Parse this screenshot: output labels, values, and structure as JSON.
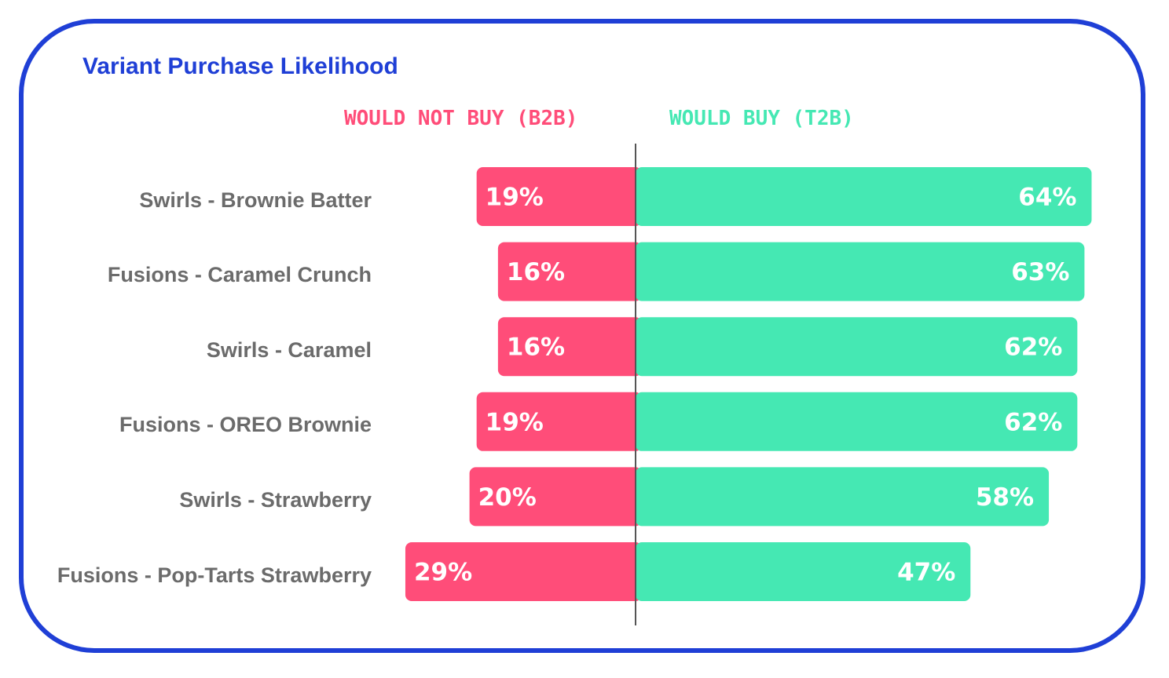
{
  "chart_data": {
    "type": "bar",
    "orientation": "horizontal-diverging",
    "title": "Variant Purchase Likelihood",
    "categories": [
      "Swirls - Brownie Batter",
      "Fusions - Caramel Crunch",
      "Swirls - Caramel",
      "Fusions - OREO Brownie",
      "Swirls - Strawberry",
      "Fusions - Pop-Tarts Strawberry"
    ],
    "series": [
      {
        "name": "WOULD NOT BUY (B2B)",
        "values": [
          19,
          16,
          16,
          19,
          20,
          29
        ],
        "color": "#ff4d79",
        "side": "left"
      },
      {
        "name": "WOULD BUY (T2B)",
        "values": [
          64,
          63,
          62,
          62,
          58,
          47
        ],
        "color": "#45e8b3",
        "side": "right"
      }
    ],
    "value_format": "{v}%"
  },
  "colors": {
    "frame": "#1f3fd6",
    "label_text": "#6b6b6b",
    "axis_line": "#555555"
  }
}
